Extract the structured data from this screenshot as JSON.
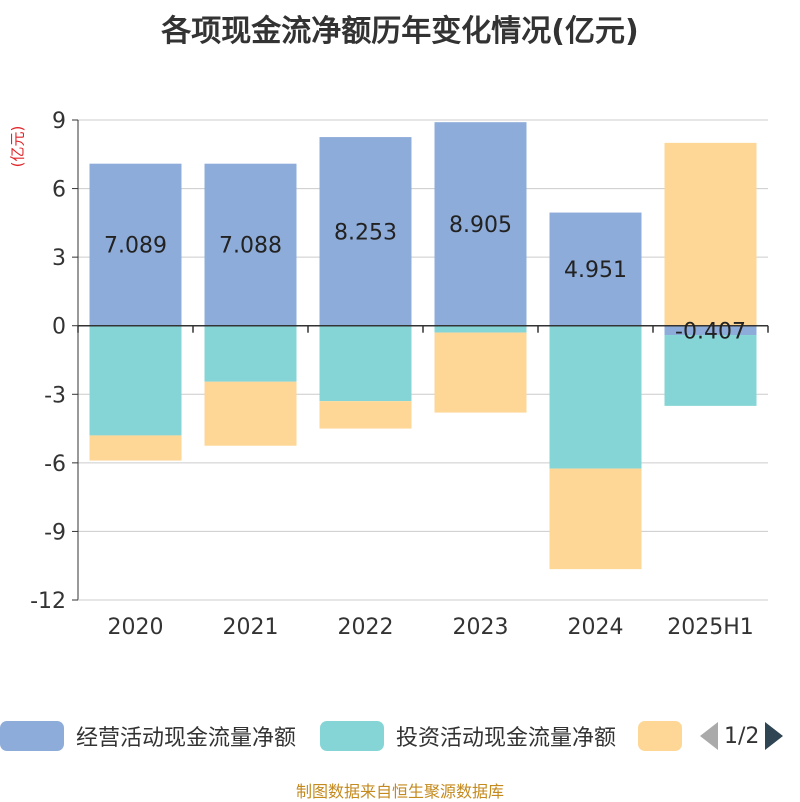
{
  "title": "各项现金流净额历年变化情况(亿元)",
  "unit_label": "(亿元)",
  "source": "制图数据来自恒生聚源数据库",
  "pager": {
    "text": "1/2"
  },
  "colors": {
    "operating": "#8eacd9",
    "investing": "#86d5d6",
    "financing": "#fed797",
    "axis": "#333333",
    "grid": "#cccccc",
    "unit": "#e0262b",
    "source": "#c48a1e"
  },
  "legend": [
    {
      "name": "经营活动现金流量净额",
      "color": "#8eacd9"
    },
    {
      "name": "投资活动现金流量净额",
      "color": "#86d5d6"
    },
    {
      "name": "",
      "color": "#fed797"
    }
  ],
  "chart_data": {
    "type": "bar",
    "stacked": true,
    "categories": [
      "2020",
      "2021",
      "2022",
      "2023",
      "2024",
      "2025H1"
    ],
    "yticks": [
      9,
      6,
      3,
      0,
      -3,
      -6,
      -9,
      -12
    ],
    "ylim": [
      -12,
      9
    ],
    "grid": true,
    "legend_position": "bottom",
    "series": [
      {
        "name": "经营活动现金流量净额",
        "color": "#8eacd9",
        "values": [
          7.089,
          7.088,
          8.253,
          8.905,
          4.951,
          -0.407
        ],
        "labels": [
          "7.089",
          "7.088",
          "8.253",
          "8.905",
          "4.951",
          "-0.407"
        ]
      },
      {
        "name": "投资活动现金流量净额",
        "color": "#86d5d6",
        "values": [
          -4.8,
          -2.45,
          -3.3,
          -0.3,
          -6.25,
          -3.1
        ],
        "labels": [
          "",
          "",
          "",
          "",
          "",
          ""
        ]
      },
      {
        "name": "",
        "color": "#fed797",
        "values": [
          -1.1,
          -2.8,
          -1.2,
          -3.5,
          -4.4,
          8.0
        ],
        "labels": [
          "",
          "",
          "",
          "",
          "",
          ""
        ]
      }
    ]
  }
}
